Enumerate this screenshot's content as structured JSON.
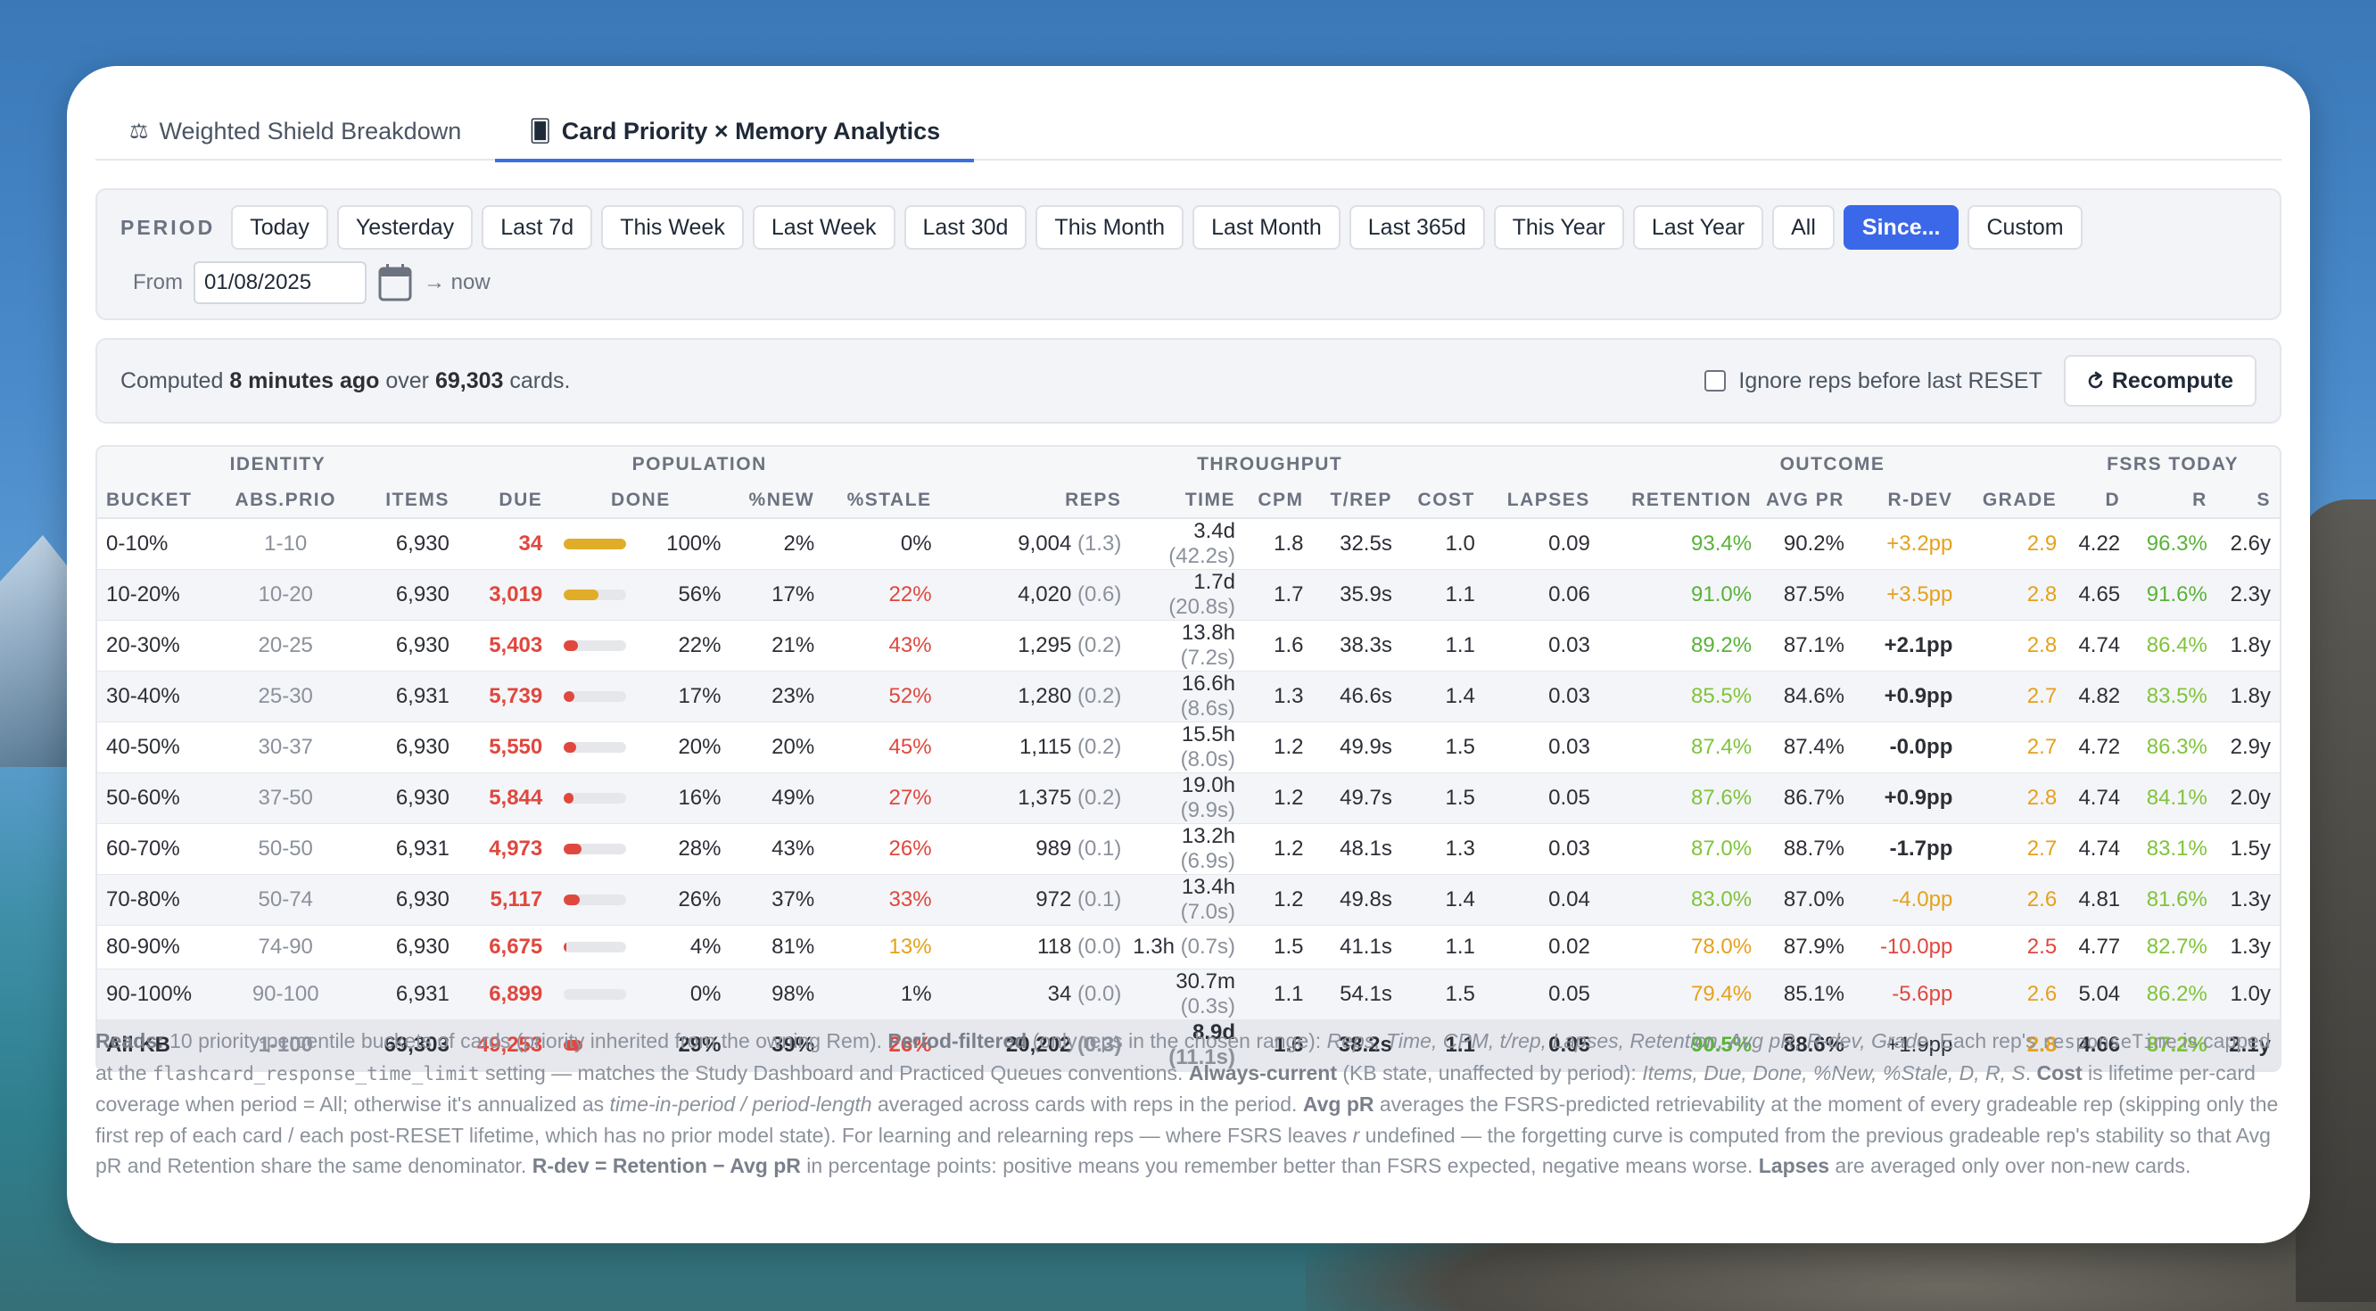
{
  "tabs": [
    {
      "icon": "⚖",
      "label": "Weighted Shield Breakdown"
    },
    {
      "icon": "🂠",
      "label": "Card Priority × Memory Analytics"
    }
  ],
  "period": {
    "label": "PERIOD",
    "options": [
      "Today",
      "Yesterday",
      "Last 7d",
      "This Week",
      "Last Week",
      "Last 30d",
      "This Month",
      "Last Month",
      "Last 365d",
      "This Year",
      "Last Year",
      "All",
      "Since...",
      "Custom"
    ],
    "selected": "Since...",
    "from_label": "From",
    "from_value": "01/08/2025",
    "to_label": "→ now"
  },
  "computed": {
    "prefix": "Computed",
    "ago": "8 minutes ago",
    "mid": "over",
    "count": "69,303",
    "suffix": "cards.",
    "ignore_label": "Ignore reps before last RESET",
    "recompute_label": "Recompute"
  },
  "table": {
    "groups": [
      "IDENTITY",
      "POPULATION",
      "THROUGHPUT",
      "OUTCOME",
      "FSRS TODAY"
    ],
    "columns": [
      "BUCKET",
      "ABS.PRIO",
      "ITEMS",
      "DUE",
      "DONE",
      "%NEW",
      "%STALE",
      "REPS",
      "TIME",
      "CPM",
      "T/REP",
      "COST",
      "LAPSES",
      "RETENTION",
      "AVG PR",
      "R-DEV",
      "GRADE",
      "D",
      "R",
      "S"
    ],
    "rows": [
      {
        "bucket": "0-10%",
        "prio": "1-10",
        "items": "6,930",
        "due": "34",
        "done_pct": 100,
        "done": "100%",
        "new": "2%",
        "stale": "0%",
        "reps": "9,004",
        "reps_sub": "(1.3)",
        "time": "3.4d",
        "time_sub": "(42.2s)",
        "cpm": "1.8",
        "trep": "32.5s",
        "cost": "1.0",
        "lapses": "0.09",
        "ret": "93.4%",
        "avgpr": "90.2%",
        "rdev": "+3.2pp",
        "grade": "2.9",
        "d": "4.22",
        "r": "96.3%",
        "s": "2.6y"
      },
      {
        "bucket": "10-20%",
        "prio": "10-20",
        "items": "6,930",
        "due": "3,019",
        "done_pct": 56,
        "done": "56%",
        "new": "17%",
        "stale": "22%",
        "reps": "4,020",
        "reps_sub": "(0.6)",
        "time": "1.7d",
        "time_sub": "(20.8s)",
        "cpm": "1.7",
        "trep": "35.9s",
        "cost": "1.1",
        "lapses": "0.06",
        "ret": "91.0%",
        "avgpr": "87.5%",
        "rdev": "+3.5pp",
        "grade": "2.8",
        "d": "4.65",
        "r": "91.6%",
        "s": "2.3y"
      },
      {
        "bucket": "20-30%",
        "prio": "20-25",
        "items": "6,930",
        "due": "5,403",
        "done_pct": 22,
        "done": "22%",
        "new": "21%",
        "stale": "43%",
        "reps": "1,295",
        "reps_sub": "(0.2)",
        "time": "13.8h",
        "time_sub": "(7.2s)",
        "cpm": "1.6",
        "trep": "38.3s",
        "cost": "1.1",
        "lapses": "0.03",
        "ret": "89.2%",
        "avgpr": "87.1%",
        "rdev": "+2.1pp",
        "grade": "2.8",
        "d": "4.74",
        "r": "86.4%",
        "s": "1.8y"
      },
      {
        "bucket": "30-40%",
        "prio": "25-30",
        "items": "6,931",
        "due": "5,739",
        "done_pct": 17,
        "done": "17%",
        "new": "23%",
        "stale": "52%",
        "reps": "1,280",
        "reps_sub": "(0.2)",
        "time": "16.6h",
        "time_sub": "(8.6s)",
        "cpm": "1.3",
        "trep": "46.6s",
        "cost": "1.4",
        "lapses": "0.03",
        "ret": "85.5%",
        "avgpr": "84.6%",
        "rdev": "+0.9pp",
        "grade": "2.7",
        "d": "4.82",
        "r": "83.5%",
        "s": "1.8y"
      },
      {
        "bucket": "40-50%",
        "prio": "30-37",
        "items": "6,930",
        "due": "5,550",
        "done_pct": 20,
        "done": "20%",
        "new": "20%",
        "stale": "45%",
        "reps": "1,115",
        "reps_sub": "(0.2)",
        "time": "15.5h",
        "time_sub": "(8.0s)",
        "cpm": "1.2",
        "trep": "49.9s",
        "cost": "1.5",
        "lapses": "0.03",
        "ret": "87.4%",
        "avgpr": "87.4%",
        "rdev": "-0.0pp",
        "grade": "2.7",
        "d": "4.72",
        "r": "86.3%",
        "s": "2.9y"
      },
      {
        "bucket": "50-60%",
        "prio": "37-50",
        "items": "6,930",
        "due": "5,844",
        "done_pct": 16,
        "done": "16%",
        "new": "49%",
        "stale": "27%",
        "reps": "1,375",
        "reps_sub": "(0.2)",
        "time": "19.0h",
        "time_sub": "(9.9s)",
        "cpm": "1.2",
        "trep": "49.7s",
        "cost": "1.5",
        "lapses": "0.05",
        "ret": "87.6%",
        "avgpr": "86.7%",
        "rdev": "+0.9pp",
        "grade": "2.8",
        "d": "4.74",
        "r": "84.1%",
        "s": "2.0y"
      },
      {
        "bucket": "60-70%",
        "prio": "50-50",
        "items": "6,931",
        "due": "4,973",
        "done_pct": 28,
        "done": "28%",
        "new": "43%",
        "stale": "26%",
        "reps": "989",
        "reps_sub": "(0.1)",
        "time": "13.2h",
        "time_sub": "(6.9s)",
        "cpm": "1.2",
        "trep": "48.1s",
        "cost": "1.3",
        "lapses": "0.03",
        "ret": "87.0%",
        "avgpr": "88.7%",
        "rdev": "-1.7pp",
        "grade": "2.7",
        "d": "4.74",
        "r": "83.1%",
        "s": "1.5y"
      },
      {
        "bucket": "70-80%",
        "prio": "50-74",
        "items": "6,930",
        "due": "5,117",
        "done_pct": 26,
        "done": "26%",
        "new": "37%",
        "stale": "33%",
        "reps": "972",
        "reps_sub": "(0.1)",
        "time": "13.4h",
        "time_sub": "(7.0s)",
        "cpm": "1.2",
        "trep": "49.8s",
        "cost": "1.4",
        "lapses": "0.04",
        "ret": "83.0%",
        "avgpr": "87.0%",
        "rdev": "-4.0pp",
        "grade": "2.6",
        "d": "4.81",
        "r": "81.6%",
        "s": "1.3y"
      },
      {
        "bucket": "80-90%",
        "prio": "74-90",
        "items": "6,930",
        "due": "6,675",
        "done_pct": 4,
        "done": "4%",
        "new": "81%",
        "stale": "13%",
        "reps": "118",
        "reps_sub": "(0.0)",
        "time": "1.3h",
        "time_sub": "(0.7s)",
        "cpm": "1.5",
        "trep": "41.1s",
        "cost": "1.1",
        "lapses": "0.02",
        "ret": "78.0%",
        "avgpr": "87.9%",
        "rdev": "-10.0pp",
        "grade": "2.5",
        "d": "4.77",
        "r": "82.7%",
        "s": "1.3y"
      },
      {
        "bucket": "90-100%",
        "prio": "90-100",
        "items": "6,931",
        "due": "6,899",
        "done_pct": 0,
        "done": "0%",
        "new": "98%",
        "stale": "1%",
        "reps": "34",
        "reps_sub": "(0.0)",
        "time": "30.7m",
        "time_sub": "(0.3s)",
        "cpm": "1.1",
        "trep": "54.1s",
        "cost": "1.5",
        "lapses": "0.05",
        "ret": "79.4%",
        "avgpr": "85.1%",
        "rdev": "-5.6pp",
        "grade": "2.6",
        "d": "5.04",
        "r": "86.2%",
        "s": "1.0y"
      }
    ],
    "total": {
      "bucket": "All KB",
      "prio": "1-100",
      "items": "69,303",
      "due": "49,253",
      "done_pct": 29,
      "done": "29%",
      "new": "39%",
      "stale": "26%",
      "reps": "20,202",
      "reps_sub": "(0.3)",
      "time": "8.9d",
      "time_sub": "(11.1s)",
      "cpm": "1.6",
      "trep": "38.2s",
      "cost": "1.1",
      "lapses": "0.05",
      "ret": "90.5%",
      "avgpr": "88.6%",
      "rdev": "+1.9pp",
      "grade": "2.8",
      "d": "4.66",
      "r": "87.2%",
      "s": "2.1y"
    }
  },
  "footnote": {
    "p1b": "Reads:",
    "p1": " 10 priority-percentile buckets of cards (priority inherited from the owning Rem). ",
    "p2b": "Period-filtered",
    "p2": " (only reps in the chosen range): ",
    "p2i": "Reps, Time, CPM, t/rep, Lapses, Retention, Avg pR, R-dev, Grade",
    "p3": ". Each rep's ",
    "p3c": "responseTime",
    "p4": " is capped at the ",
    "p4c": "flashcard_response_time_limit",
    "p5": " setting — matches the Study Dashboard and Practiced Queues conventions. ",
    "p5b": "Always-current",
    "p6": " (KB state, unaffected by period): ",
    "p6i": "Items, Due, Done, %New, %Stale, D, R, S",
    "p7": ". ",
    "p7b": "Cost",
    "p8": " is lifetime per-card coverage when period = All; otherwise it's annualized as ",
    "p8i": "time-in-period / period-length",
    "p9": " averaged across cards with reps in the period. ",
    "p9b": "Avg pR",
    "p10": " averages the FSRS-predicted retrievability at the moment of every gradeable rep (skipping only the first rep of each card / each post-RESET lifetime, which has no prior model state). For learning and relearning reps — where FSRS leaves ",
    "p10i": "r",
    "p11": " undefined — the forgetting curve is computed from the previous gradeable rep's stability so that Avg pR and Retention share the same denominator. ",
    "p11b": "R-dev = Retention − Avg pR",
    "p12": " in percentage points: positive means you remember better than FSRS expected, negative means worse. ",
    "p12b": "Lapses",
    "p13": " are averaged only over non-new cards."
  }
}
